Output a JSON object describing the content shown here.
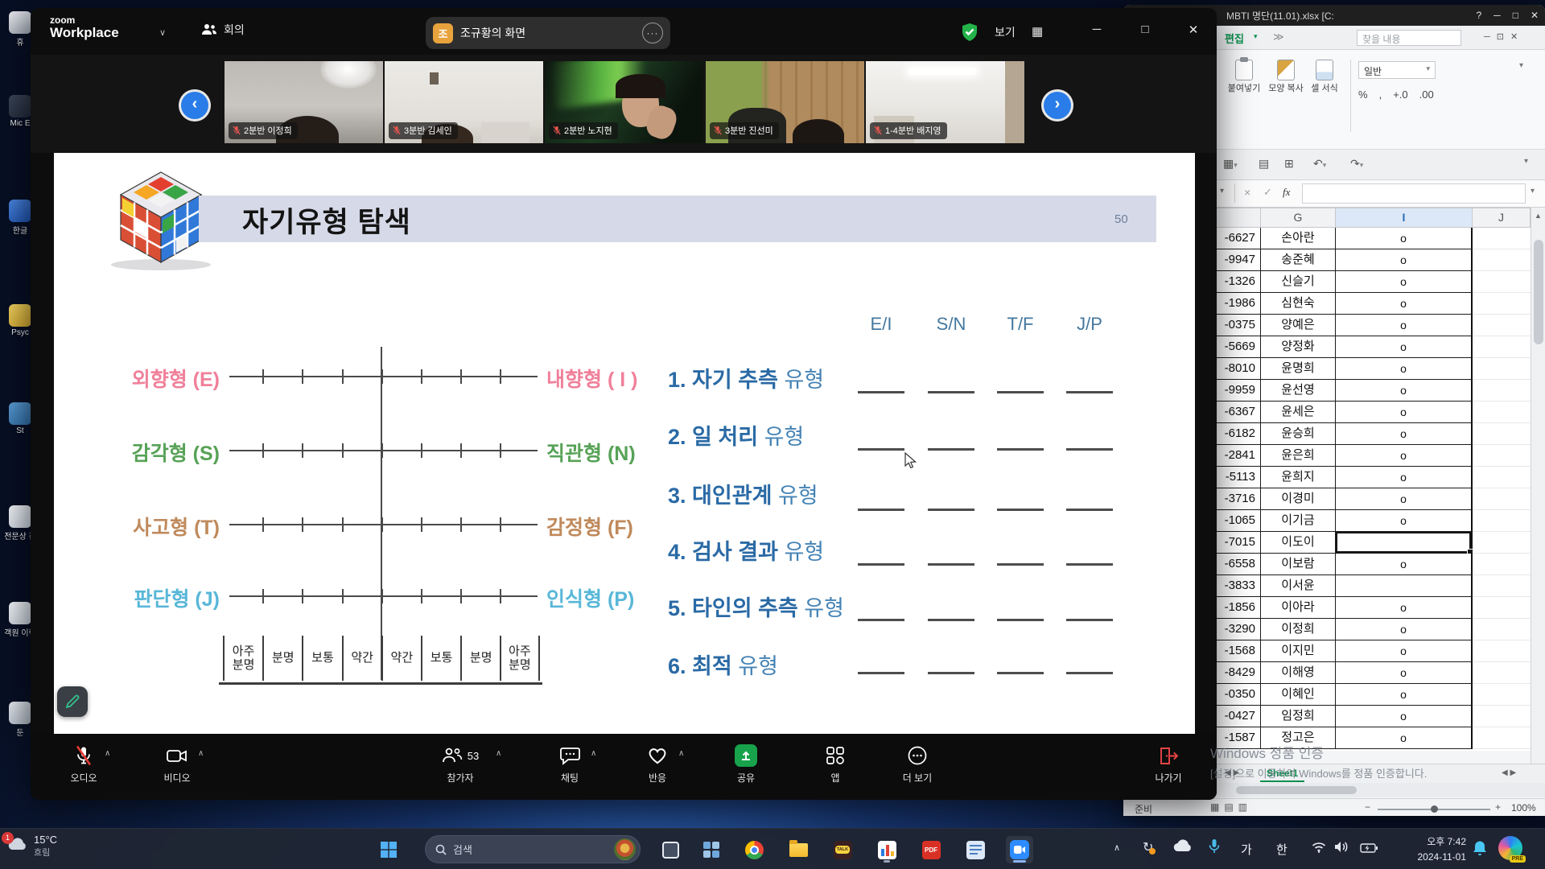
{
  "desktop": {
    "icons": [
      {
        "label": "휴"
      },
      {
        "label": "Mic E"
      },
      {
        "label": "한글"
      },
      {
        "label": "Psyc"
      },
      {
        "label": "St"
      },
      {
        "label": "전문상 김"
      },
      {
        "label": "객원 이력"
      },
      {
        "label": "둔"
      }
    ]
  },
  "zoom": {
    "brand_top": "zoom",
    "brand_bottom": "Workplace",
    "meeting_tab": "회의",
    "share_badge": "조",
    "share_label": "조규황의 화면",
    "share_more": "···",
    "view_label": "보기",
    "participants": [
      "2분반 이정희",
      "3분반 김세인",
      "2분반 노지현",
      "3분반 진선미",
      "1-4분반 배지영"
    ],
    "toolbar": {
      "audio": "오디오",
      "video": "비디오",
      "participants": "참가자",
      "participants_count": "53",
      "chat": "채팅",
      "reactions": "반응",
      "share": "공유",
      "apps": "앱",
      "more": "더 보기",
      "leave": "나가기"
    }
  },
  "slide": {
    "title": "자기유형 탐색",
    "page_number": "50",
    "columns": [
      "E/I",
      "S/N",
      "T/F",
      "J/P"
    ],
    "axes": [
      {
        "left": "외향형 (E)",
        "right": "내향형 ( I )",
        "color": "#f0809a"
      },
      {
        "left": "감각형 (S)",
        "right": "직관형 (N)",
        "color": "#57a257"
      },
      {
        "left": "사고형 (T)",
        "right": "감정형 (F)",
        "color": "#c08a5c"
      },
      {
        "left": "판단형 (J)",
        "right": "인식형 (P)",
        "color": "#58b7d8"
      }
    ],
    "scale_labels": [
      "아주 분명",
      "분명",
      "보통",
      "약간",
      "약간",
      "보통",
      "분명",
      "아주 분명"
    ],
    "items": [
      {
        "num": "1.",
        "strong": "자기 추측",
        "rest": "유형"
      },
      {
        "num": "2.",
        "strong": "일 처리",
        "rest": "유형"
      },
      {
        "num": "3.",
        "strong": "대인관계",
        "rest": "유형"
      },
      {
        "num": "4.",
        "strong": "검사 결과",
        "rest": "유형"
      },
      {
        "num": "5.",
        "strong": "타인의 추측",
        "rest": "유형"
      },
      {
        "num": "6.",
        "strong": "최적",
        "rest": "유형"
      }
    ]
  },
  "excel": {
    "title": "MBTI 명단(11.01).xlsx [C:",
    "edit_tab": "편집",
    "find_label": "찾을 내용",
    "ribbon": {
      "paste": "붙여넣기",
      "format_painter": "모양 복사",
      "cell_format": "셀 서식",
      "number_format": "일반",
      "percent": "%",
      "comma": ",",
      "dec_inc": "+.0",
      "dec_dec": ".00"
    },
    "formula_fx": "fx",
    "columns": [
      "G",
      "I",
      "J"
    ],
    "rows": [
      {
        "num": "-6627",
        "name": "손아란",
        "mark": "o"
      },
      {
        "num": "-9947",
        "name": "송준혜",
        "mark": "o"
      },
      {
        "num": "-1326",
        "name": "신슬기",
        "mark": "o"
      },
      {
        "num": "-1986",
        "name": "심현숙",
        "mark": "o"
      },
      {
        "num": "-0375",
        "name": "양예은",
        "mark": "o"
      },
      {
        "num": "-5669",
        "name": "양정화",
        "mark": "o"
      },
      {
        "num": "-8010",
        "name": "윤명희",
        "mark": "o"
      },
      {
        "num": "-9959",
        "name": "윤선영",
        "mark": "o"
      },
      {
        "num": "-6367",
        "name": "윤세은",
        "mark": "o"
      },
      {
        "num": "-6182",
        "name": "윤승희",
        "mark": "o"
      },
      {
        "num": "-2841",
        "name": "윤은희",
        "mark": "o"
      },
      {
        "num": "-5113",
        "name": "윤희지",
        "mark": "o"
      },
      {
        "num": "-3716",
        "name": "이경미",
        "mark": "o"
      },
      {
        "num": "-1065",
        "name": "이기금",
        "mark": "o"
      },
      {
        "num": "-7015",
        "name": "이도이",
        "mark": "",
        "selected": true
      },
      {
        "num": "-6558",
        "name": "이보람",
        "mark": "o"
      },
      {
        "num": "-3833",
        "name": "이서윤",
        "mark": ""
      },
      {
        "num": "-1856",
        "name": "이아라",
        "mark": "o"
      },
      {
        "num": "-3290",
        "name": "이정희",
        "mark": "o"
      },
      {
        "num": "-1568",
        "name": "이지민",
        "mark": "o"
      },
      {
        "num": "-8429",
        "name": "이해영",
        "mark": "o"
      },
      {
        "num": "-0350",
        "name": "이혜인",
        "mark": "o"
      },
      {
        "num": "-0427",
        "name": "임정희",
        "mark": "o"
      },
      {
        "num": "-1587",
        "name": "정고은",
        "mark": "o"
      }
    ],
    "sheet_tab": "Sheet1",
    "status_ready": "준비",
    "zoom_level": "100%"
  },
  "watermark": {
    "line1": "Windows 정품 인증",
    "line2": "[설정]으로 이동하여 Windows를 정품 인증합니다."
  },
  "taskbar": {
    "badge": "1",
    "weather_temp": "15°C",
    "weather_desc": "흐림",
    "search_label": "검색",
    "kakao": "TALK",
    "pdf": "PDF",
    "ime_a": "가",
    "ime_han": "한",
    "time": "오후 7:42",
    "date": "2024-11-01",
    "copilot_badge": "PRE"
  }
}
